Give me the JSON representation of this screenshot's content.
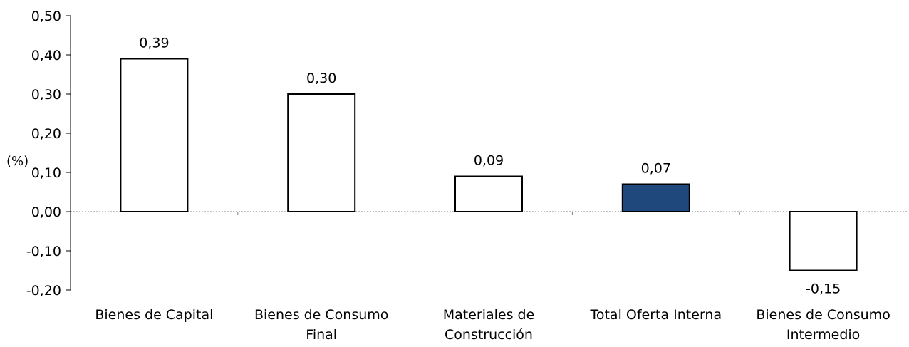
{
  "chart_data": {
    "type": "bar",
    "title": "",
    "xlabel": "",
    "ylabel": "(%)",
    "ylim": [
      -0.2,
      0.5
    ],
    "yticks": [
      -0.2,
      -0.1,
      0.0,
      0.1,
      0.2,
      0.3,
      0.4,
      0.5
    ],
    "ytick_labels": [
      "-0,20",
      "-0,10",
      "0,00",
      "0,10",
      "0,20",
      "0,30",
      "0,40",
      "0,50"
    ],
    "categories": [
      [
        "Bienes de Capital"
      ],
      [
        "Bienes de Consumo",
        "Final"
      ],
      [
        "Materiales de",
        "Construcción"
      ],
      [
        "Total Oferta Interna"
      ],
      [
        "Bienes de Consumo",
        "Intermedio"
      ]
    ],
    "values": [
      0.39,
      0.3,
      0.09,
      0.07,
      -0.15
    ],
    "value_labels": [
      "0,39",
      "0,30",
      "0,09",
      "0,07",
      "-0,15"
    ],
    "bar_fill_colors": [
      "#ffffff",
      "#ffffff",
      "#ffffff",
      "#1f497d",
      "#ffffff"
    ],
    "bar_stroke_color": "#000000",
    "grid": false,
    "legend": "none",
    "zero_line_style": "dotted"
  }
}
